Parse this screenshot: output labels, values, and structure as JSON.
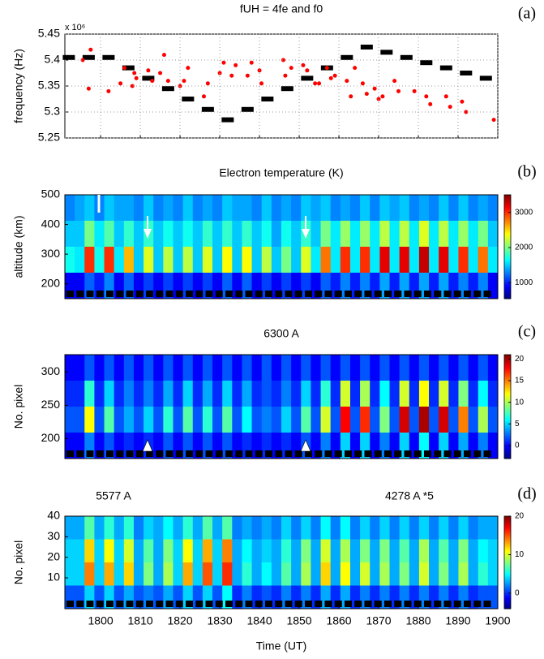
{
  "chart_data": [
    {
      "type": "scatter",
      "title": "fUH = 4fe and f0",
      "panel_label": "(a)",
      "ylabel": "frequency (Hz)",
      "scale_label": "x 10⁶",
      "xlim": [
        1791,
        1900
      ],
      "xticks": [
        1800,
        1810,
        1820,
        1830,
        1840,
        1850,
        1860,
        1870,
        1880,
        1890,
        1900
      ],
      "ylim": [
        5.25,
        5.45
      ],
      "yticks": [
        5.25,
        5.3,
        5.35,
        5.4,
        5.45
      ],
      "grid": true,
      "series": [
        {
          "marker": "dash",
          "color": "#000000",
          "x": [
            1792,
            1797,
            1802,
            1807,
            1812,
            1817,
            1822,
            1827,
            1832,
            1837,
            1842,
            1847,
            1852,
            1857,
            1862,
            1867,
            1872,
            1877,
            1882,
            1887,
            1892,
            1897
          ],
          "values": [
            5.405,
            5.405,
            5.405,
            5.385,
            5.365,
            5.345,
            5.325,
            5.305,
            5.285,
            5.305,
            5.325,
            5.345,
            5.365,
            5.385,
            5.405,
            5.425,
            5.415,
            5.405,
            5.395,
            5.385,
            5.375,
            5.365
          ]
        },
        {
          "marker": "dot",
          "color": "#ff0000",
          "x": [
            1795.5,
            1797,
            1797.5,
            1802,
            1805,
            1806,
            1808,
            1808.5,
            1809,
            1812,
            1813,
            1815,
            1816,
            1817,
            1820,
            1821,
            1822,
            1826,
            1827,
            1830,
            1831,
            1833,
            1834,
            1837,
            1838,
            1840,
            1840.5,
            1846,
            1846.5,
            1848,
            1851,
            1852,
            1854,
            1855,
            1857,
            1858,
            1859,
            1862,
            1863,
            1864,
            1866,
            1867,
            1869,
            1870,
            1871,
            1874,
            1875,
            1879,
            1882,
            1883,
            1887,
            1888,
            1891,
            1892,
            1899
          ],
          "values": [
            5.4,
            5.345,
            5.42,
            5.34,
            5.355,
            5.385,
            5.35,
            5.375,
            5.365,
            5.38,
            5.36,
            5.375,
            5.41,
            5.36,
            5.35,
            5.36,
            5.385,
            5.33,
            5.355,
            5.375,
            5.395,
            5.37,
            5.39,
            5.37,
            5.395,
            5.38,
            5.355,
            5.4,
            5.37,
            5.385,
            5.39,
            5.38,
            5.355,
            5.355,
            5.385,
            5.365,
            5.37,
            5.36,
            5.33,
            5.385,
            5.355,
            5.335,
            5.345,
            5.325,
            5.33,
            5.36,
            5.34,
            5.34,
            5.33,
            5.315,
            5.33,
            5.31,
            5.32,
            5.3,
            5.285
          ]
        }
      ]
    },
    {
      "type": "heatmap",
      "title": "Electron temperature (K)",
      "panel_label": "(b)",
      "ylabel": "altitude (km)",
      "xlim": [
        1791,
        1900
      ],
      "ylim": [
        150,
        500
      ],
      "yticks": [
        200,
        300,
        400,
        500
      ],
      "clim": [
        550,
        3500
      ],
      "cticks": [
        1000,
        2000,
        3000
      ],
      "z": [
        [
          1300,
          1400,
          1500,
          1300,
          1500,
          1400,
          1400,
          1300,
          1500,
          1300,
          1400,
          1300,
          1500,
          1300,
          1400,
          1300,
          1500,
          1400,
          1400,
          1300,
          1500,
          1300,
          1400,
          1300,
          1500,
          1400,
          1500,
          1300,
          1400,
          1300,
          1500,
          1300,
          1500,
          1400,
          1500,
          1300,
          1400,
          1300,
          1500,
          1300,
          1500,
          1300,
          1400,
          1300
        ],
        [
          1500,
          1500,
          2000,
          1600,
          1900,
          1500,
          1800,
          1500,
          1800,
          1500,
          1700,
          1500,
          1700,
          1500,
          1800,
          1500,
          1800,
          1500,
          1800,
          1500,
          1700,
          1400,
          1700,
          1500,
          1800,
          1500,
          2000,
          1600,
          2100,
          1600,
          2100,
          1600,
          2200,
          1600,
          2200,
          1600,
          2300,
          1600,
          2200,
          1600,
          2100,
          1600,
          2000,
          1500
        ],
        [
          1700,
          1600,
          3000,
          1700,
          3000,
          1600,
          2600,
          1500,
          2300,
          1500,
          2200,
          1500,
          2200,
          1500,
          2300,
          1500,
          2400,
          1500,
          2400,
          1500,
          2200,
          1500,
          2000,
          1500,
          2300,
          1600,
          2800,
          1600,
          3000,
          1600,
          3000,
          1600,
          3200,
          1600,
          3200,
          1600,
          3300,
          1600,
          3200,
          1600,
          3000,
          1600,
          2800,
          1600
        ],
        [
          900,
          900,
          1200,
          1000,
          1300,
          900,
          1200,
          900,
          1100,
          900,
          1100,
          900,
          1100,
          900,
          1100,
          900,
          1200,
          900,
          1200,
          900,
          1100,
          900,
          1100,
          900,
          1100,
          900,
          1200,
          1000,
          1300,
          1000,
          1300,
          1000,
          1400,
          1000,
          1400,
          1000,
          1400,
          1000,
          1400,
          1000,
          1300,
          1000,
          1300,
          900
        ]
      ]
    },
    {
      "type": "heatmap",
      "title": "6300 A",
      "panel_label": "(c)",
      "ylabel": "No. pixel",
      "xlim": [
        1791,
        1900
      ],
      "ylim": [
        170,
        326
      ],
      "yticks": [
        200,
        250,
        300
      ],
      "clim": [
        -3,
        21
      ],
      "cticks": [
        0,
        5,
        10,
        15,
        20
      ],
      "z": [
        [
          0,
          0,
          2,
          0,
          2,
          0,
          2,
          0,
          2,
          0,
          2,
          0,
          2,
          0,
          2,
          0,
          2,
          0,
          2,
          0,
          2,
          0,
          2,
          0,
          2,
          0,
          2,
          0,
          2,
          0,
          2,
          0,
          2,
          0,
          2,
          0,
          2,
          0,
          2,
          0,
          2,
          0,
          2,
          0
        ],
        [
          1,
          1,
          7,
          1,
          5,
          1,
          3,
          1,
          3,
          1,
          4,
          1,
          5,
          1,
          4,
          1,
          5,
          1,
          4,
          1,
          2,
          1,
          3,
          1,
          5,
          1,
          7,
          1,
          11,
          1,
          10,
          1,
          6,
          1,
          11,
          1,
          12,
          1,
          11,
          1,
          9,
          1,
          6,
          1
        ],
        [
          2,
          2,
          12,
          2,
          8,
          2,
          4,
          2,
          5,
          2,
          7,
          2,
          8,
          2,
          7,
          2,
          8,
          2,
          6,
          2,
          3,
          2,
          5,
          2,
          8,
          2,
          11,
          2,
          18,
          2,
          17,
          2,
          9,
          2,
          19,
          2,
          20,
          2,
          19,
          2,
          15,
          2,
          10,
          2
        ],
        [
          0,
          0,
          3,
          0,
          2,
          0,
          1,
          0,
          1,
          0,
          2,
          0,
          2,
          0,
          2,
          0,
          2,
          0,
          1,
          0,
          1,
          0,
          1,
          0,
          2,
          0,
          3,
          0,
          5,
          0,
          5,
          0,
          3,
          0,
          5,
          0,
          6,
          0,
          5,
          0,
          4,
          0,
          3,
          0
        ]
      ]
    },
    {
      "type": "heatmap",
      "titles": [
        "5577 A",
        "4278 A *5"
      ],
      "panel_label": "(d)",
      "ylabel": "No. pixel",
      "xlabel": "Time (UT)",
      "xlim": [
        1791,
        1900
      ],
      "xticks": [
        1800,
        1810,
        1820,
        1830,
        1840,
        1850,
        1860,
        1870,
        1880,
        1890,
        1900
      ],
      "ylim": [
        -5,
        40
      ],
      "yticks": [
        10,
        20,
        30,
        40
      ],
      "clim": [
        -4,
        20
      ],
      "cticks": [
        0,
        10,
        20
      ],
      "z": [
        [
          3,
          3,
          7,
          3,
          6,
          3,
          6,
          2,
          4,
          3,
          5,
          3,
          6,
          3,
          7,
          3,
          7,
          2,
          3,
          2,
          3,
          2,
          4,
          2,
          4,
          2,
          5,
          2,
          5,
          2,
          4,
          2,
          4,
          2,
          4,
          2,
          4,
          2,
          4,
          2,
          4,
          2,
          3,
          3
        ],
        [
          4,
          4,
          12,
          4,
          11,
          4,
          10,
          3,
          7,
          3,
          8,
          4,
          11,
          4,
          13,
          4,
          14,
          3,
          5,
          3,
          4,
          3,
          6,
          3,
          8,
          3,
          10,
          3,
          9,
          3,
          8,
          3,
          8,
          3,
          7,
          3,
          9,
          3,
          7,
          3,
          8,
          3,
          5,
          4
        ],
        [
          4,
          4,
          14,
          4,
          13,
          4,
          12,
          3,
          8,
          3,
          9,
          4,
          13,
          4,
          15,
          4,
          16,
          3,
          6,
          3,
          5,
          3,
          7,
          3,
          9,
          3,
          12,
          3,
          11,
          3,
          10,
          3,
          9,
          3,
          8,
          3,
          10,
          3,
          8,
          3,
          9,
          3,
          6,
          4
        ],
        [
          1,
          1,
          4,
          1,
          4,
          1,
          3,
          1,
          2,
          1,
          3,
          1,
          4,
          1,
          4,
          1,
          5,
          0,
          2,
          0,
          1,
          0,
          2,
          0,
          2,
          0,
          3,
          0,
          3,
          0,
          2,
          0,
          2,
          0,
          2,
          0,
          2,
          0,
          2,
          0,
          2,
          0,
          1,
          1
        ]
      ]
    }
  ]
}
